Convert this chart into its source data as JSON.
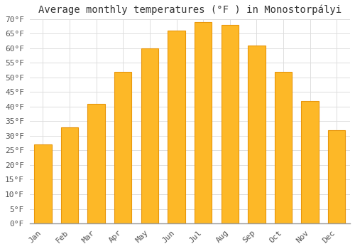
{
  "title": "Average monthly temperatures (°F ) in Monostorpályi",
  "months": [
    "Jan",
    "Feb",
    "Mar",
    "Apr",
    "May",
    "Jun",
    "Jul",
    "Aug",
    "Sep",
    "Oct",
    "Nov",
    "Dec"
  ],
  "values": [
    27.0,
    33.0,
    41.0,
    52.0,
    60.0,
    66.0,
    69.0,
    68.0,
    61.0,
    52.0,
    42.0,
    32.0
  ],
  "bar_color": "#FDB827",
  "bar_edge_color": "#E8950A",
  "background_color": "#FFFFFF",
  "grid_color": "#DDDDDD",
  "ylim": [
    0,
    70
  ],
  "yticks": [
    0,
    5,
    10,
    15,
    20,
    25,
    30,
    35,
    40,
    45,
    50,
    55,
    60,
    65,
    70
  ],
  "title_fontsize": 10,
  "tick_fontsize": 8,
  "font_family": "monospace"
}
